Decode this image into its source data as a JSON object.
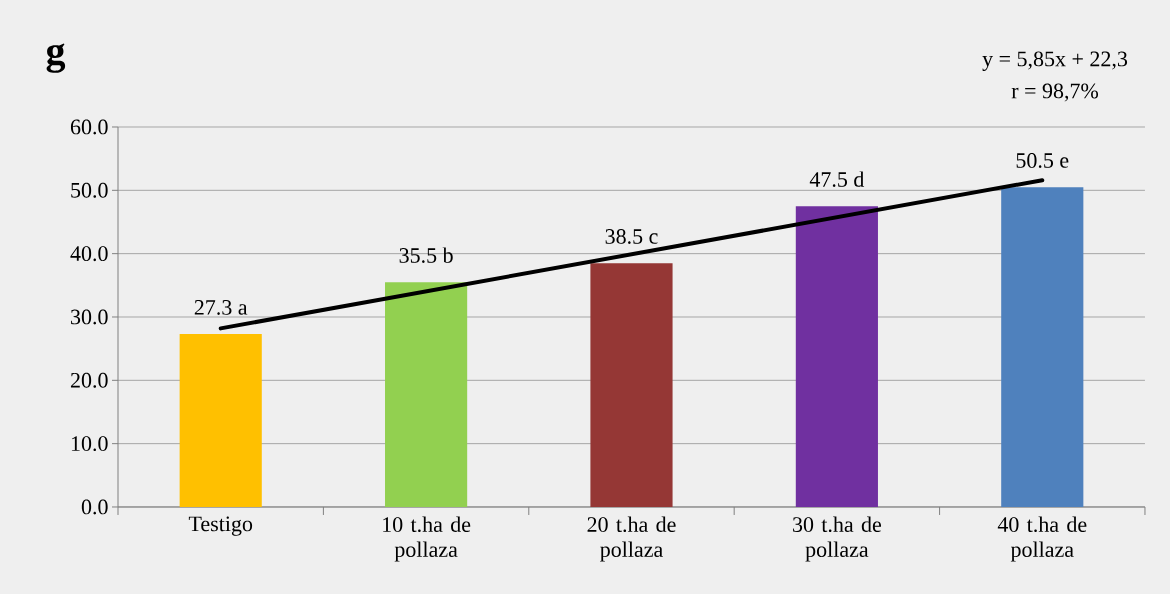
{
  "chart_data": {
    "type": "bar",
    "title": "g",
    "categories": [
      "Testigo",
      "10 t.ha de pollaza",
      "20 t.ha de pollaza",
      "30 t.ha de pollaza",
      "40 t.ha de pollaza"
    ],
    "series": [
      {
        "values": [
          27.3,
          35.5,
          38.5,
          47.5,
          50.5
        ],
        "colors": [
          "#ffc000",
          "#92d050",
          "#953735",
          "#7030a0",
          "#4f81bd"
        ],
        "value_labels": [
          "27.3 a",
          "35.5 b",
          "38.5 c",
          "47.5 d",
          "50.5 e"
        ]
      },
      {
        "type": "line",
        "x": [
          "Testigo",
          "40 t.ha de pollaza"
        ],
        "values": [
          28.2,
          51.6
        ],
        "color": "#000000"
      }
    ],
    "ylim": [
      0,
      60
    ],
    "yticks": [
      {
        "value": 0,
        "label": "0.0"
      },
      {
        "value": 10,
        "label": "10.0"
      },
      {
        "value": 20,
        "label": "20.0"
      },
      {
        "value": 30,
        "label": "30.0"
      },
      {
        "value": 40,
        "label": "40.0"
      },
      {
        "value": 50,
        "label": "50.0"
      },
      {
        "value": 60,
        "label": "60.0"
      }
    ],
    "grid": "y",
    "annotations": [
      "y = 5,85x + 22,3",
      "r = 98,7%"
    ]
  }
}
